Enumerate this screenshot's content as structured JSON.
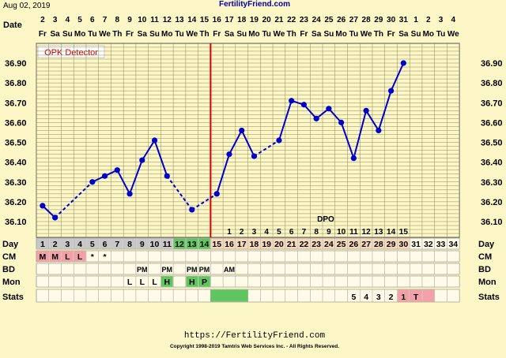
{
  "header": {
    "date_printed": "Aug 02, 2019",
    "site_name": "FertilityFriend.com"
  },
  "footer": {
    "url": "https://FertilityFriend.com",
    "copyright": "Copyright 1998-2019 Tamtris Web Services Inc. - All Rights Reserved."
  },
  "opk_detector_label": "OPK Detector",
  "dpo_label": "DPO",
  "row_labels": {
    "date": "Date",
    "day": "Day",
    "cm": "CM",
    "bd": "BD",
    "mon": "Mon",
    "stats": "Stats"
  },
  "colors": {
    "background": "#fdf6c7",
    "grid_line": "#8b8b5a",
    "temp_line": "#0000cc",
    "coverline": "#dd0000",
    "green": "#5fc65f",
    "pink": "#f4a0a8",
    "peach": "#f6d7b8",
    "day_gray": "#c8c8c8"
  },
  "chart_data": {
    "type": "line",
    "title": "",
    "y_unit": "",
    "ylim": [
      36.03,
      37.0
    ],
    "y_ticks": [
      "36.10",
      "36.20",
      "36.30",
      "36.40",
      "36.50",
      "36.60",
      "36.70",
      "36.80",
      "36.90"
    ],
    "dates": [
      "2",
      "3",
      "4",
      "5",
      "6",
      "7",
      "8",
      "9",
      "10",
      "11",
      "12",
      "13",
      "14",
      "15",
      "16",
      "17",
      "18",
      "19",
      "20",
      "21",
      "22",
      "23",
      "24",
      "25",
      "26",
      "27",
      "28",
      "29",
      "30",
      "31",
      "1",
      "2",
      "3",
      "4"
    ],
    "weekdays": [
      "Fr",
      "Sa",
      "Su",
      "Mo",
      "Tu",
      "We",
      "Th",
      "Fr",
      "Sa",
      "Su",
      "Mo",
      "Tu",
      "We",
      "Th",
      "Fr",
      "Sa",
      "Su",
      "Mo",
      "Tu",
      "We",
      "Th",
      "Fr",
      "Sa",
      "Su",
      "Mo",
      "Tu",
      "We",
      "Th",
      "Fr",
      "Sa",
      "Su",
      "Mo",
      "Tu",
      "We"
    ],
    "month_label": "Aug",
    "cycle_days": [
      "1",
      "2",
      "3",
      "4",
      "5",
      "6",
      "7",
      "8",
      "9",
      "10",
      "11",
      "12",
      "13",
      "14",
      "15",
      "16",
      "17",
      "18",
      "19",
      "20",
      "21",
      "22",
      "23",
      "24",
      "25",
      "26",
      "27",
      "28",
      "29",
      "30",
      "31",
      "32",
      "33",
      "34"
    ],
    "temperatures": [
      {
        "day": 1,
        "value": 36.18
      },
      {
        "day": 2,
        "value": 36.12
      },
      {
        "day": 5,
        "value": 36.3
      },
      {
        "day": 6,
        "value": 36.33
      },
      {
        "day": 7,
        "value": 36.36
      },
      {
        "day": 8,
        "value": 36.24
      },
      {
        "day": 9,
        "value": 36.41
      },
      {
        "day": 10,
        "value": 36.51
      },
      {
        "day": 11,
        "value": 36.33
      },
      {
        "day": 13,
        "value": 36.16
      },
      {
        "day": 15,
        "value": 36.24
      },
      {
        "day": 16,
        "value": 36.44
      },
      {
        "day": 17,
        "value": 36.56
      },
      {
        "day": 18,
        "value": 36.43
      },
      {
        "day": 20,
        "value": 36.51
      },
      {
        "day": 21,
        "value": 36.71
      },
      {
        "day": 22,
        "value": 36.69
      },
      {
        "day": 23,
        "value": 36.62
      },
      {
        "day": 24,
        "value": 36.67
      },
      {
        "day": 25,
        "value": 36.6
      },
      {
        "day": 26,
        "value": 36.42
      },
      {
        "day": 27,
        "value": 36.66
      },
      {
        "day": 28,
        "value": 36.56
      },
      {
        "day": 29,
        "value": 36.76
      },
      {
        "day": 30,
        "value": 36.9
      }
    ],
    "dashed_segments": [
      [
        2,
        5
      ],
      [
        11,
        13
      ],
      [
        13,
        15
      ],
      [
        18,
        20
      ]
    ],
    "coverline_day": 15,
    "dpo_numbers": [
      "1",
      "2",
      "3",
      "4",
      "5",
      "6",
      "7",
      "8",
      "9",
      "10",
      "11",
      "12",
      "13",
      "14",
      "15"
    ],
    "dpo_start_day": 16,
    "day_cell_colors": {
      "1": "gray",
      "2": "gray",
      "3": "gray",
      "4": "gray",
      "5": "gray",
      "6": "gray",
      "7": "gray",
      "8": "gray",
      "9": "gray",
      "10": "gray",
      "11": "gray",
      "12": "green",
      "13": "green",
      "14": "green",
      "15": "peach",
      "16": "peach",
      "17": "peach",
      "18": "peach",
      "19": "peach",
      "20": "peach",
      "21": "peach",
      "22": "peach",
      "23": "peach",
      "24": "peach",
      "25": "peach",
      "26": "peach",
      "27": "peach",
      "28": "peach",
      "29": "peach",
      "30": "peach"
    },
    "cm": [
      {
        "day": 1,
        "text": "M",
        "bg": "pink"
      },
      {
        "day": 2,
        "text": "M",
        "bg": "pink"
      },
      {
        "day": 3,
        "text": "L",
        "bg": "pink"
      },
      {
        "day": 4,
        "text": "L",
        "bg": "pink"
      },
      {
        "day": 5,
        "text": "*",
        "bg": ""
      },
      {
        "day": 6,
        "text": "*",
        "bg": ""
      }
    ],
    "bd": [
      {
        "day": 9,
        "text": "PM"
      },
      {
        "day": 11,
        "text": "PM"
      },
      {
        "day": 13,
        "text": "PM"
      },
      {
        "day": 14,
        "text": "PM"
      },
      {
        "day": 16,
        "text": "AM"
      }
    ],
    "mon": [
      {
        "day": 8,
        "text": "L",
        "bg": ""
      },
      {
        "day": 9,
        "text": "L",
        "bg": ""
      },
      {
        "day": 10,
        "text": "L",
        "bg": ""
      },
      {
        "day": 11,
        "text": "H",
        "bg": "green"
      },
      {
        "day": 13,
        "text": "H",
        "bg": "green"
      },
      {
        "day": 14,
        "text": "P",
        "bg": "green"
      }
    ],
    "stats_green_span": [
      15,
      17
    ],
    "stats": [
      {
        "day": 26,
        "text": "5",
        "bg": ""
      },
      {
        "day": 27,
        "text": "4",
        "bg": ""
      },
      {
        "day": 28,
        "text": "3",
        "bg": ""
      },
      {
        "day": 29,
        "text": "2",
        "bg": ""
      },
      {
        "day": 30,
        "text": "1",
        "bg": "pink"
      },
      {
        "day": 31,
        "text": "T",
        "bg": "pink"
      },
      {
        "day": 32,
        "text": "",
        "bg": "pink"
      }
    ]
  }
}
